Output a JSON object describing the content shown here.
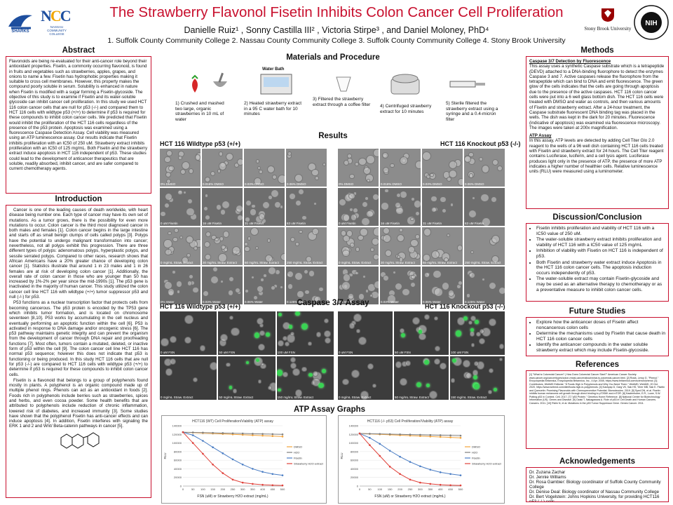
{
  "poster": {
    "title": "The Strawberry Flavonol Fisetin Inhibits Colon Cancer Cell Proliferation",
    "authors": "Danielle Ruiz¹ , Sonny Castilla III² , Victoria Stirpe³ , and Daniel Moloney, PhD⁴",
    "affiliations": "1. Suffolk County Community College   2. Nassau County Community College   3. Suffolk County Community College   4. Stony Brook University"
  },
  "logos": {
    "left_1": "SHARKS",
    "left_2": "NASSAU COMMUNITY COLLEGE",
    "right_1": "Stony Brook University",
    "right_2": "NATIONAL INSTITUTES OF HEALTH"
  },
  "abstract": {
    "heading": "Abstract",
    "text": "Flavonoids are being re-evaluated for their anti-cancer role beyond their antioxidant properties. Fisetin, a commonly occurring flavonoid, is found in fruits and vegetables such as strawberries, apples, grapes, and onions to name a few. Fisetin has hydrophobic properties making it suitable to cross cell membranes. However, this property makes the compound poorly soluble in serum. Solubility is enhanced in nature when Fisetin is modified with a sugar forming a Fisetin-glycoside. The objective of this study is to examine if Fisetin and its water-soluble glycoside can inhibit cancer cell proliferation. In this study we used HCT 116 colon cancer cells that are null for p53 (-/-) and compared them to HCT 116 cells with wildtype p53 (+/+) to determine if p53 is required for these compounds to inhibit colon cancer cells. We predicted that Fisetin would inhibit the proliferation of the HCT 116 cells regardless of the presence of the p53 protein. Apoptosis was examined using a fluorescence Caspase Detection Assay. Cell viability was measured using an ATP luminescence assay. Our results indicate that Fisetin inhibits proliferation with an IC50 of 250 uM. Strawberry extract inhibits proliferation with an IC50 of 125 mg/mL. Both Fisetin and the strawberry extract induce apoptosis in HCT 116 independent of p53. These studies could lead to the development of anticancer therapeutics that are soluble, readily absorbed, inhibit cancer, and are safer compared to current chemotherapy agents."
  },
  "introduction": {
    "heading": "Introduction",
    "p1": "Cancer is one of the leading causes of death worldwide, with heart disease being number one. Each type of cancer may have its own set of mutations. As a tumor grows, there is the possibility for even more mutations to occur. Colon cancer is the third most diagnosed cancer in both males and females [1]. Colon cancer begins in the large intestine and starts off as small benign clumps of cells called polyps [3]. Polyps have the potential to undergo malignant transformation into cancer; nevertheless, not all polyps exhibit this progression. There are three different types of polyps: adenomatous polyps, hyperplastic polyps, and sessile serrated polyps. Compared to other races, research shows that African Americans have a 20% greater chance of developing colon cancer [1]. Statistics illustrate that around 1 in 23 males and 1 in 26 females are at risk of developing colon cancer [1]. Additionally, the overall rate of colon cancer in those who are younger than 50 has increased by 1%-2% per year since the mid-1990s [1]. The p53 gene is inactivated in the majority of human cancer. This study utilized the colon cancer cell line HCT 116 with wildtype (+/+) tumor suppressor p53 and null (-/-) for p53.",
    "p2": "P53 functions as a nuclear transcription factor that protects cells from becoming cancerous. The p53 protein is encoded by the TP53 gene which inhibits tumor formation, and is located on chromosome seventeen [8,10]. P53 works by accumulating in the cell nucleus and eventually performing an apoptotic function within the cell [6]. P53 is activated in response to DNA damage and/or oncogenic stress [6]. The p53 pathway maintains genetic integrity and can prevent the organism from the development of cancer through DNA repair and proofreading functions [7]. Most often, tumors contain a mutated, deleted, or inactive form of p53 within the cell [9]. The colon cancer cell line HCT 116 has normal p53 sequence; however this does not indicate that p53 is functioning or being produced. In this study HCT 116 cells that are null for p53 (-/-) are compared to HCT 116 cells with wildtype p53 (+/+) to determine if p53 is required for these compounds to inhibit colon cancer cells.",
    "p3": "Fisetin is a flavonoid that belongs to a group of polyphenols found mostly in plants. A polyphenol is an organic compound made up of multiple phenol rings. Phenols can act as an antioxidant in foods [2]. Foods rich in polyphenols include berries such as strawberries, spices and herbs, and even cocoa powder. Some health benefits that are attributed to polyphenols include reduction of chronic inflammation, lowered risk of diabetes, and increased immunity [3]. Some studies have shown that the polyphenol Fisetin has anti-cancer effects and can induce apoptosis [4]. In addition, Fisetin interferes with signaling the ERK 1 and 2 and Wnt/ Beta-catenin pathways in cancer [5]."
  },
  "materials": {
    "heading": "Materials and Procedure",
    "water_bath_label": "Water Bath",
    "steps": [
      "1) Crushed and mashed two large, organic strawberries in 10 mL of water",
      "2) Heated strawberry extract in a 95 C water bath for 10 minutes",
      "3) Filtered the strawberry extract through a coffee filter",
      "4) Centrifuged strawberry extract for 10 minutes",
      "5) Sterile filtered the strawberry extract using a syringe and a 0.4-micron filter"
    ]
  },
  "results": {
    "heading": "Results",
    "wt_label": "HCT 116 Wildtype p53 (+/+)",
    "ko_label": "HCT 116 Knockout p53 (-/-)",
    "wt_rows": [
      [
        "0% DMSO",
        "0.016% DMSO",
        "0.03% DMSO",
        "0.06% DMSO"
      ],
      [
        "0 uM Fisetin",
        "16 uM Fisetin",
        "31 uM Fisetin",
        "63 uM Fisetin"
      ],
      [
        "0 mg/mL Straw. Extract",
        "30 mg/mL Straw. Extract",
        "60 mg/mL Straw. Extract",
        "250 mg/mL Straw. Extract"
      ],
      [
        "0% Water",
        "0.03% Water",
        "0.06% Water",
        "0.125% Water"
      ]
    ],
    "ko_rows": [
      [
        "0% DMSO",
        "0.016% DMSO",
        "0.03% DMSO",
        "0.06% DMSO"
      ],
      [
        "0 uM Fisetin",
        "16 uM Fisetin",
        "31 uM Fisetin",
        "63 uM Fisetin"
      ],
      [
        "0 mg/mL Straw. Extract",
        "30 mg/mL Straw. Extract",
        "60 mg/mL Straw. Extract",
        "250 mg/mL Straw. Extract"
      ],
      [
        "0% Water",
        "0.03% Water",
        "0.06% Water",
        "0.125% Water"
      ]
    ]
  },
  "caspase": {
    "heading": "Caspase 3/7 Assay",
    "wt_label": "HCT 116 Wildtype p53 (+/+)",
    "ko_label": "HCT 116 Knockout p53 (-/-)",
    "wt_rows": [
      [
        "0 uM FSN",
        "50 uM FSN",
        "100 uM FSN"
      ],
      [
        "0 mg/mL Straw. Extract",
        "50 mg/mL Straw. Extract",
        "150 mg/mL Straw. Extract"
      ]
    ],
    "ko_rows": [
      [
        "0 uM FSN",
        "50 uM FSN",
        "100 uM FSN"
      ],
      [
        "0 mg/mL Straw. Extract",
        "50 mg/mL Straw. Extract",
        "150 mg/mL Straw. Extract"
      ]
    ]
  },
  "atp": {
    "heading": "ATP Assay Graphs"
  },
  "chart_data": [
    {
      "type": "line",
      "title": "HCT116 (WT) Cell Proliferation/Viability (ATP) assay",
      "xlabel": "FSN (uM) or Strawberry H2O extract (mg/mL)",
      "ylabel": "RLU",
      "x": [
        0,
        50,
        100,
        150,
        200,
        250,
        300,
        350,
        400,
        450,
        500
      ],
      "ylim": [
        0,
        140000
      ],
      "yticks": [
        "0",
        "20000",
        "40000",
        "60000",
        "80000",
        "100000",
        "120000",
        "140000"
      ],
      "xticks": [
        "0",
        "50",
        "100",
        "150",
        "200",
        "250",
        "300",
        "350",
        "400",
        "450",
        "500"
      ],
      "series": [
        {
          "name": "DMSO",
          "color": "#f2a33a",
          "values": [
            125000,
            124000,
            123000,
            122000,
            121000,
            120000,
            119000,
            118000,
            117000,
            116000,
            115000
          ]
        },
        {
          "name": "H2O",
          "color": "#7f7f7f",
          "values": [
            125000,
            124500,
            124000,
            123500,
            123000,
            122500,
            122000,
            121500,
            121000,
            120500,
            120000
          ]
        },
        {
          "name": "Fisetin",
          "color": "#4a7dc4",
          "values": [
            125000,
            118000,
            105000,
            90000,
            76000,
            62000,
            50000,
            40000,
            33000,
            28000,
            25000
          ]
        },
        {
          "name": "Strawberry H2O extract",
          "color": "#e0413a",
          "values": [
            125000,
            100000,
            75000,
            50000,
            30000,
            15000,
            8000,
            5000,
            3000,
            2000,
            1500
          ]
        }
      ]
    },
    {
      "type": "line",
      "title": "HCT116 (-/- p53) Cell Proliferation/Viability (ATP) assay",
      "xlabel": "FSN (uM) or Strawberry H2O extract (mg/mL)",
      "ylabel": "RLU",
      "x": [
        0,
        50,
        100,
        150,
        200,
        250,
        300,
        350,
        400,
        450,
        500
      ],
      "ylim": [
        0,
        140000
      ],
      "yticks": [
        "0",
        "20000",
        "40000",
        "60000",
        "80000",
        "100000",
        "120000",
        "140000"
      ],
      "xticks": [
        "0",
        "50",
        "100",
        "150",
        "200",
        "250",
        "300",
        "350",
        "400",
        "450",
        "500"
      ],
      "series": [
        {
          "name": "DMSO",
          "color": "#f2a33a",
          "values": [
            122000,
            121000,
            120000,
            119000,
            118000,
            117000,
            116000,
            115000,
            114000,
            113000,
            112000
          ]
        },
        {
          "name": "H2O",
          "color": "#7f7f7f",
          "values": [
            122000,
            121500,
            121000,
            120500,
            120000,
            119500,
            119000,
            118500,
            118000,
            117500,
            117000
          ]
        },
        {
          "name": "Fisetin",
          "color": "#4a7dc4",
          "values": [
            122000,
            112000,
            98000,
            82000,
            68000,
            56000,
            46000,
            38000,
            32000,
            28000,
            25000
          ]
        },
        {
          "name": "Strawberry H2O extract",
          "color": "#e0413a",
          "values": [
            122000,
            95000,
            70000,
            45000,
            28000,
            15000,
            8000,
            5000,
            3000,
            2000,
            1500
          ]
        }
      ]
    }
  ],
  "methods": {
    "heading": "Methods",
    "caspase_head": "Caspase 3/7 Detection by Fluorescence",
    "caspase_text": "This assay uses a synthetic Caspase substrate which is a tetrapeptide (DEVD) attached to a DNA-binding fluorophore to detect the enzymes Caspase 3 and 7. Active caspases release the fluorophore from the tetrapeptide which can bind to DNA and emit fluorescence. The green glow of the cells indicates that the cells are going through apoptosis due to the presence of the active caspases. HCT 116 colon cancer cells were put into a 6 well glass bottom dish. The HCT 116 cells were treated with DMSO and water as controls, and then various amounts of Fisetin and strawberry extract. After a 24-hour treatment, the Caspase substrate fluorescent DNA binding tag was placed in the wells. The dish was kept in the dark for 20 minutes. Fluorescence (indicative of apoptosis) was examined via fluorescence microscopy. The images were taken at 200x magnification.",
    "atp_head": "ATP Assay",
    "atp_text": "In this assay, ATP levels are detected by adding Cell Titer Glo 2.0 reagent to the wells of a 96 well dish containing HCT 116 cells treated with Fisetin and strawberry extract for 24 hours. The Cell Titer reagent contains Luciferase, luciferin, and a cell lysis agent. Luciferase produces light only in the presence of ATP, the presence of more ATP indicates a higher number of healthier cells. Relative luminescence units (RLU) were measured using a luminometer."
  },
  "discussion": {
    "heading": "Discussion/Conclusion",
    "items": [
      "Fisetin inhibits proliferation and viability of HCT 116 with a IC50 value of 250 uM.",
      "The water-soluble strawberry extract inhibits proliferation and viability of HCT 116 with a IC50 value of 125 mg/mL",
      "Inhibition of viability with Fisetin on HCT 116  is independent of p53.",
      "Both Fisetin and strawberry water extract induce Apoptosis in the HCT 116 colon cancer cells. The apoptosis induction occurs independently of p53.",
      "The water-soluble extract may contain Fisetin-glycoside and may be used as an alternative therapy to chemotherapy or as a preventative measure to inhibit colon cancer cells."
    ]
  },
  "future": {
    "heading": "Future Studies",
    "items": [
      "Explore how the anticancer doses of Fisetin affect noncancerous colon cells",
      "Determine the mechanisms used by Fisetin that cause death in HCT 116 colon cancer cells",
      "Identify the anticancer compounds in the water soluble strawberry extract which may include Fisetin-glycoside."
    ]
  },
  "references": {
    "heading": "References",
    "text": "[1] \"What is Colorectal Cancer? | How Does Colorectal Cancer Start?\" American Cancer Society. www.cancer.org/cancer/types/colon-rectal-cancer/about/what-is-colorectal-cancer.html. [2] Rosik, Leroy G. \"Phenol.\" Encyclopedia Britannica, Encyclopedia Britannica, Inc., 4 Apr. 2008, https://www.britannica.com/science/phenol. [3] Contributors, WebMD Editorial. \"8 Foods High in Polyphenols and Why You Need Them.\" WebMD, WebMD, 20 Oct. 2020, https://www.webmd.com/diet/foods-high-in-polyphenols. [4] Kashyap D, Garg VK, Sak HS, Yerer MB, Sak K. Fisetin and Quercetin: Promising Flavonoids with Chemopreventive Potential. Biomolecules. 2019. [5] Syed DN, et al. Fisetin inhibits human melanoma cell growth through direct binding to p70S6K and mTOR. [6] Kastenhuber, E.R., Lowe, S.W. Putting p53 in Context. Cell. 2017. [7] \"p53 Protein.\" Genetics Home Reference. [8] National Center for Biotechnology Information (US). Genes and Disease. [9] Ozaki T, Nakagawara A. Role of p53 in Cell Death and Human Cancers. Cancers. 2011. [10] Rivlin N, et al. Mutations in the p53 Tumor Suppressor Gene. Genes Cancer. 2011."
  },
  "acknowledgements": {
    "heading": "Acknowledgements",
    "items": [
      "Dr. Zuzana Zachar",
      "Dr. Jennie Williams",
      "Dr. Rosa Gambier: Biology coordinator  of Suffolk County Community College",
      "Dr. Denise Deal: Biology coordinator of Nassau Community College",
      "Dr. Bert Vogelstein: Johns Hopkins University, for providing HCT116 p53 (-/-) cells",
      "This work was supported by NIH Grant GM050070"
    ]
  }
}
